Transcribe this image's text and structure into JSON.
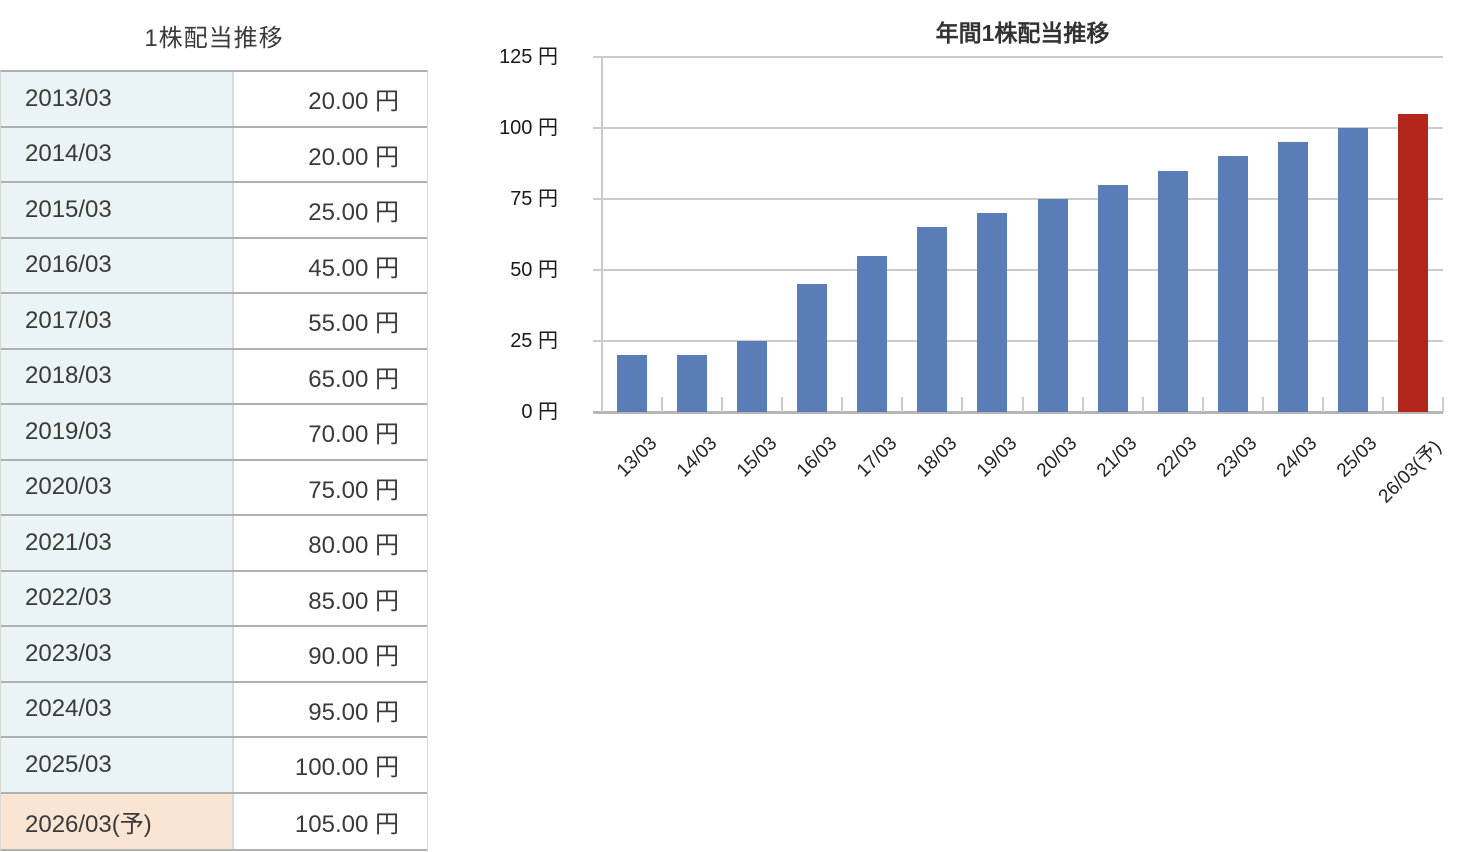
{
  "table": {
    "title": "1株配当推移",
    "unit_suffix": " 円",
    "rows": [
      {
        "period": "2013/03",
        "value": "20.00 円",
        "forecast": false
      },
      {
        "period": "2014/03",
        "value": "20.00 円",
        "forecast": false
      },
      {
        "period": "2015/03",
        "value": "25.00 円",
        "forecast": false
      },
      {
        "period": "2016/03",
        "value": "45.00 円",
        "forecast": false
      },
      {
        "period": "2017/03",
        "value": "55.00 円",
        "forecast": false
      },
      {
        "period": "2018/03",
        "value": "65.00 円",
        "forecast": false
      },
      {
        "period": "2019/03",
        "value": "70.00 円",
        "forecast": false
      },
      {
        "period": "2020/03",
        "value": "75.00 円",
        "forecast": false
      },
      {
        "period": "2021/03",
        "value": "80.00 円",
        "forecast": false
      },
      {
        "period": "2022/03",
        "value": "85.00 円",
        "forecast": false
      },
      {
        "period": "2023/03",
        "value": "90.00 円",
        "forecast": false
      },
      {
        "period": "2024/03",
        "value": "95.00 円",
        "forecast": false
      },
      {
        "period": "2025/03",
        "value": "100.00 円",
        "forecast": false
      },
      {
        "period": "2026/03(予)",
        "value": "105.00 円",
        "forecast": true
      }
    ]
  },
  "chart_data": {
    "type": "bar",
    "title": "年間1株配当推移",
    "categories": [
      "13/03",
      "14/03",
      "15/03",
      "16/03",
      "17/03",
      "18/03",
      "19/03",
      "20/03",
      "21/03",
      "22/03",
      "23/03",
      "24/03",
      "25/03",
      "26/03(予)"
    ],
    "values": [
      20,
      20,
      25,
      45,
      55,
      65,
      70,
      75,
      80,
      85,
      90,
      95,
      100,
      105
    ],
    "unit": "円",
    "xlabel": "",
    "ylabel": "",
    "ylim": [
      0,
      125
    ],
    "y_ticks": [
      0,
      25,
      50,
      75,
      100,
      125
    ],
    "y_tick_labels": [
      "0 円",
      "25 円",
      "50 円",
      "75 円",
      "100 円",
      "125 円"
    ],
    "grid": true,
    "legend": "none",
    "bar_color": "#5a7db7",
    "forecast_index": 13,
    "forecast_color": "#b2261c"
  },
  "colors": {
    "period_bg": "#eaf3f6",
    "forecast_bg": "#fae5d2",
    "row_border": "#b0b0b0",
    "col_border": "#d9d9d9",
    "grid_line": "#cbcbcb",
    "axis_line": "#b6b6b6",
    "text": "#3a3a3a"
  }
}
